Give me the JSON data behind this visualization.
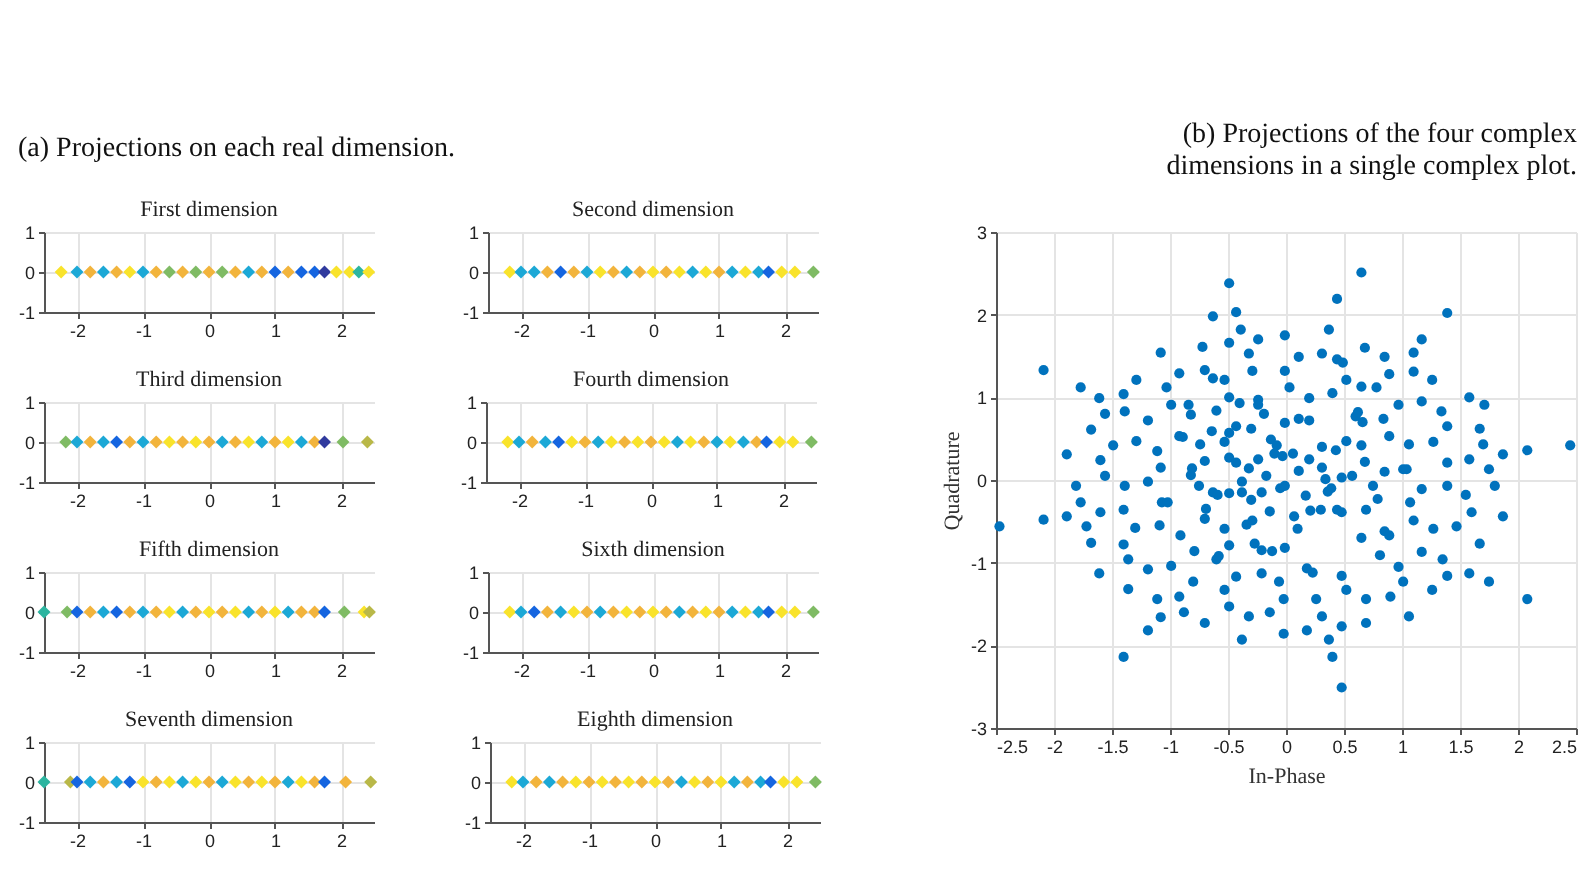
{
  "chart_data": [
    {
      "type": "scatter",
      "title": "(a) Projections on each real dimension.",
      "subtitle": "First dimension",
      "marker": "diamond",
      "grid": true,
      "xlim": [
        -2.5,
        2.5
      ],
      "xticks": [
        -2,
        -1,
        0,
        1,
        2
      ],
      "ylim": [
        -1,
        1
      ],
      "yticks": [
        -1,
        0,
        1
      ],
      "x": [
        -2.24,
        -2.0,
        -1.8,
        -1.6,
        -1.4,
        -1.2,
        -1.0,
        -0.8,
        -0.6,
        -0.4,
        -0.2,
        0,
        0.2,
        0.4,
        0.6,
        0.8,
        1.0,
        1.2,
        1.4,
        1.6,
        1.75,
        1.93,
        2.13,
        2.27,
        2.42
      ],
      "values": [
        0,
        0,
        0,
        0,
        0,
        0,
        0,
        0,
        0,
        0,
        0,
        0,
        0,
        0,
        0,
        0,
        0,
        0,
        0,
        0,
        0,
        0,
        0,
        0,
        0
      ],
      "colors": [
        "#f9e32b",
        "#1ca8d6",
        "#f2b43c",
        "#1ca8d6",
        "#f2b43c",
        "#f9e32b",
        "#1ca8d6",
        "#f2b43c",
        "#7fbb64",
        "#f2b43c",
        "#7fbb64",
        "#f2b43c",
        "#7fbb64",
        "#f2b43c",
        "#1ca8d6",
        "#f2b43c",
        "#1565e0",
        "#f2b43c",
        "#1565e0",
        "#1565e0",
        "#303a9e",
        "#f9e32b",
        "#f9e32b",
        "#2cb5a0",
        "#f9e32b"
      ]
    },
    {
      "type": "scatter",
      "title": "Second dimension",
      "marker": "diamond",
      "grid": true,
      "xlim": [
        -2.5,
        2.5
      ],
      "xticks": [
        -2,
        -1,
        0,
        1,
        2
      ],
      "ylim": [
        -1,
        1
      ],
      "yticks": [
        -1,
        0,
        1
      ],
      "x": [
        -2.17,
        -2.0,
        -1.8,
        -1.6,
        -1.4,
        -1.2,
        -1.0,
        -0.8,
        -0.6,
        -0.4,
        -0.2,
        0,
        0.2,
        0.4,
        0.6,
        0.8,
        1.0,
        1.2,
        1.4,
        1.6,
        1.75,
        1.95,
        2.15,
        2.43
      ],
      "values": [
        0,
        0,
        0,
        0,
        0,
        0,
        0,
        0,
        0,
        0,
        0,
        0,
        0,
        0,
        0,
        0,
        0,
        0,
        0,
        0,
        0,
        0,
        0,
        0
      ],
      "colors": [
        "#f9e32b",
        "#1ca8d6",
        "#1ca8d6",
        "#f2b43c",
        "#1565e0",
        "#f2b43c",
        "#1ca8d6",
        "#f9e32b",
        "#f2b43c",
        "#1ca8d6",
        "#f2b43c",
        "#f9e32b",
        "#f2b43c",
        "#f9e32b",
        "#1ca8d6",
        "#f9e32b",
        "#f2b43c",
        "#1ca8d6",
        "#f9e32b",
        "#1ca8d6",
        "#1565e0",
        "#f9e32b",
        "#f9e32b",
        "#7fbb64"
      ]
    },
    {
      "type": "scatter",
      "title": "Third dimension",
      "marker": "diamond",
      "grid": true,
      "xlim": [
        -2.5,
        2.5
      ],
      "xticks": [
        -2,
        -1,
        0,
        1,
        2
      ],
      "ylim": [
        -1,
        1
      ],
      "yticks": [
        -1,
        0,
        1
      ],
      "x": [
        -2.17,
        -2.0,
        -1.8,
        -1.6,
        -1.4,
        -1.2,
        -1.0,
        -0.8,
        -0.6,
        -0.4,
        -0.2,
        0,
        0.2,
        0.4,
        0.6,
        0.8,
        1.0,
        1.2,
        1.4,
        1.6,
        1.75,
        2.03,
        2.4
      ],
      "values": [
        0,
        0,
        0,
        0,
        0,
        0,
        0,
        0,
        0,
        0,
        0,
        0,
        0,
        0,
        0,
        0,
        0,
        0,
        0,
        0,
        0,
        0,
        0
      ],
      "colors": [
        "#7fbb64",
        "#1ca8d6",
        "#f2b43c",
        "#1ca8d6",
        "#1565e0",
        "#f2b43c",
        "#1ca8d6",
        "#f2b43c",
        "#f9e32b",
        "#f2b43c",
        "#f9e32b",
        "#f2b43c",
        "#1ca8d6",
        "#f2b43c",
        "#f9e32b",
        "#1ca8d6",
        "#f2b43c",
        "#f9e32b",
        "#1ca8d6",
        "#f2b43c",
        "#303a9e",
        "#7fbb64",
        "#b9b848"
      ]
    },
    {
      "type": "scatter",
      "title": "Fourth dimension",
      "marker": "diamond",
      "grid": true,
      "xlim": [
        -2.5,
        2.5
      ],
      "xticks": [
        -2,
        -1,
        0,
        1,
        2
      ],
      "ylim": [
        -1,
        1
      ],
      "yticks": [
        -1,
        0,
        1
      ],
      "x": [
        -2.17,
        -2.0,
        -1.8,
        -1.6,
        -1.4,
        -1.2,
        -1.0,
        -0.8,
        -0.6,
        -0.4,
        -0.2,
        0,
        0.2,
        0.4,
        0.6,
        0.8,
        1.0,
        1.2,
        1.4,
        1.6,
        1.75,
        1.95,
        2.15,
        2.43
      ],
      "values": [
        0,
        0,
        0,
        0,
        0,
        0,
        0,
        0,
        0,
        0,
        0,
        0,
        0,
        0,
        0,
        0,
        0,
        0,
        0,
        0,
        0,
        0,
        0,
        0
      ],
      "colors": [
        "#f9e32b",
        "#1ca8d6",
        "#f2b43c",
        "#1ca8d6",
        "#1565e0",
        "#f9e32b",
        "#f2b43c",
        "#1ca8d6",
        "#f9e32b",
        "#f2b43c",
        "#f9e32b",
        "#f2b43c",
        "#f9e32b",
        "#1ca8d6",
        "#f9e32b",
        "#f2b43c",
        "#1ca8d6",
        "#f9e32b",
        "#1ca8d6",
        "#f2b43c",
        "#1565e0",
        "#f9e32b",
        "#f9e32b",
        "#7fbb64"
      ]
    },
    {
      "type": "scatter",
      "title": "Fifth dimension",
      "marker": "diamond",
      "grid": true,
      "xlim": [
        -2.5,
        2.5
      ],
      "xticks": [
        -2,
        -1,
        0,
        1,
        2
      ],
      "ylim": [
        -1,
        1
      ],
      "yticks": [
        -1,
        0,
        1
      ],
      "x": [
        -2.5,
        -2.15,
        -2.0,
        -1.8,
        -1.6,
        -1.4,
        -1.2,
        -1.0,
        -0.8,
        -0.6,
        -0.4,
        -0.2,
        0,
        0.2,
        0.4,
        0.6,
        0.8,
        1.0,
        1.2,
        1.4,
        1.6,
        1.75,
        2.05,
        2.35,
        2.43
      ],
      "values": [
        0,
        0,
        0,
        0,
        0,
        0,
        0,
        0,
        0,
        0,
        0,
        0,
        0,
        0,
        0,
        0,
        0,
        0,
        0,
        0,
        0,
        0,
        0,
        0,
        0
      ],
      "colors": [
        "#2cb5a0",
        "#7fbb64",
        "#1565e0",
        "#f2b43c",
        "#1ca8d6",
        "#1565e0",
        "#f2b43c",
        "#1ca8d6",
        "#f2b43c",
        "#f9e32b",
        "#1ca8d6",
        "#f2b43c",
        "#f9e32b",
        "#f2b43c",
        "#f9e32b",
        "#1ca8d6",
        "#f2b43c",
        "#f9e32b",
        "#1ca8d6",
        "#f2b43c",
        "#f2b43c",
        "#1565e0",
        "#7fbb64",
        "#f9e32b",
        "#b9b848"
      ]
    },
    {
      "type": "scatter",
      "title": "Sixth dimension",
      "marker": "diamond",
      "grid": true,
      "xlim": [
        -2.5,
        2.5
      ],
      "xticks": [
        -2,
        -1,
        0,
        1,
        2
      ],
      "ylim": [
        -1,
        1
      ],
      "yticks": [
        -1,
        0,
        1
      ],
      "x": [
        -2.17,
        -2.0,
        -1.8,
        -1.6,
        -1.4,
        -1.2,
        -1.0,
        -0.8,
        -0.6,
        -0.4,
        -0.2,
        0,
        0.2,
        0.4,
        0.6,
        0.8,
        1.0,
        1.2,
        1.4,
        1.6,
        1.75,
        1.95,
        2.15,
        2.43
      ],
      "values": [
        0,
        0,
        0,
        0,
        0,
        0,
        0,
        0,
        0,
        0,
        0,
        0,
        0,
        0,
        0,
        0,
        0,
        0,
        0,
        0,
        0,
        0,
        0,
        0
      ],
      "colors": [
        "#f9e32b",
        "#1ca8d6",
        "#1565e0",
        "#f2b43c",
        "#1ca8d6",
        "#f9e32b",
        "#f2b43c",
        "#1ca8d6",
        "#f2b43c",
        "#f9e32b",
        "#f2b43c",
        "#f9e32b",
        "#f2b43c",
        "#1ca8d6",
        "#f2b43c",
        "#f9e32b",
        "#f2b43c",
        "#1ca8d6",
        "#f9e32b",
        "#1ca8d6",
        "#1565e0",
        "#f9e32b",
        "#f9e32b",
        "#7fbb64"
      ]
    },
    {
      "type": "scatter",
      "title": "Seventh dimension",
      "marker": "diamond",
      "grid": true,
      "xlim": [
        -2.5,
        2.5
      ],
      "xticks": [
        -2,
        -1,
        0,
        1,
        2
      ],
      "ylim": [
        -1,
        1
      ],
      "yticks": [
        -1,
        0,
        1
      ],
      "x": [
        -2.5,
        -2.1,
        -2.0,
        -1.8,
        -1.6,
        -1.4,
        -1.2,
        -1.0,
        -0.8,
        -0.6,
        -0.4,
        -0.2,
        0,
        0.2,
        0.4,
        0.6,
        0.8,
        1.0,
        1.2,
        1.4,
        1.6,
        1.75,
        2.07,
        2.45
      ],
      "values": [
        0,
        0,
        0,
        0,
        0,
        0,
        0,
        0,
        0,
        0,
        0,
        0,
        0,
        0,
        0,
        0,
        0,
        0,
        0,
        0,
        0,
        0,
        0,
        0
      ],
      "colors": [
        "#2cb5a0",
        "#b9b848",
        "#1565e0",
        "#1ca8d6",
        "#f2b43c",
        "#1ca8d6",
        "#1565e0",
        "#f9e32b",
        "#f2b43c",
        "#f9e32b",
        "#1ca8d6",
        "#f9e32b",
        "#f2b43c",
        "#1ca8d6",
        "#f9e32b",
        "#f2b43c",
        "#f9e32b",
        "#f2b43c",
        "#1ca8d6",
        "#f9e32b",
        "#f2b43c",
        "#1565e0",
        "#f2b43c",
        "#b9b848"
      ]
    },
    {
      "type": "scatter",
      "title": "Eighth dimension",
      "marker": "diamond",
      "grid": true,
      "xlim": [
        -2.5,
        2.5
      ],
      "xticks": [
        -2,
        -1,
        0,
        1,
        2
      ],
      "ylim": [
        -1,
        1
      ],
      "yticks": [
        -1,
        0,
        1
      ],
      "x": [
        -2.17,
        -2.0,
        -1.8,
        -1.6,
        -1.4,
        -1.2,
        -1.0,
        -0.8,
        -0.6,
        -0.4,
        -0.2,
        0,
        0.2,
        0.4,
        0.6,
        0.8,
        1.0,
        1.2,
        1.4,
        1.6,
        1.75,
        1.95,
        2.15,
        2.43
      ],
      "values": [
        0,
        0,
        0,
        0,
        0,
        0,
        0,
        0,
        0,
        0,
        0,
        0,
        0,
        0,
        0,
        0,
        0,
        0,
        0,
        0,
        0,
        0,
        0,
        0
      ],
      "colors": [
        "#f9e32b",
        "#1ca8d6",
        "#f2b43c",
        "#1ca8d6",
        "#f2b43c",
        "#f9e32b",
        "#f2b43c",
        "#f9e32b",
        "#f2b43c",
        "#f9e32b",
        "#f2b43c",
        "#f9e32b",
        "#f2b43c",
        "#1ca8d6",
        "#f9e32b",
        "#f2b43c",
        "#f9e32b",
        "#1ca8d6",
        "#f2b43c",
        "#1ca8d6",
        "#1565e0",
        "#f9e32b",
        "#f9e32b",
        "#7fbb64"
      ]
    },
    {
      "type": "scatter",
      "title": "(b) Projections of the four complex dimensions in a single complex plot.",
      "xlabel": "In-Phase",
      "ylabel": "Quadrature",
      "marker": "circle",
      "grid": true,
      "color": "#0072bd",
      "xlim": [
        -2.5,
        2.5
      ],
      "xticks": [
        -2.5,
        -2,
        -1.5,
        -1,
        -0.5,
        0,
        0.5,
        1,
        1.5,
        2,
        2.5
      ],
      "ylim": [
        -3,
        3
      ],
      "yticks": [
        -3,
        -2,
        -1,
        0,
        1,
        2,
        3
      ],
      "x": [
        -2.47,
        -2.09,
        -2.09,
        -1.89,
        -1.89,
        -1.81,
        -1.77,
        -1.77,
        -1.72,
        -1.68,
        -1.68,
        -1.61,
        -1.6,
        -1.6,
        -1.56,
        -1.56,
        -1.49,
        -1.4,
        -1.39,
        -1.39,
        -1.4,
        -1.4,
        -1.36,
        -1.3,
        -1.29,
        -1.29,
        -1.19,
        -1.19,
        -1.19,
        -1.11,
        -1.09,
        -1.08,
        -1.08,
        -1.07,
        -1.03,
        -1.02,
        -0.99,
        -0.99,
        -0.92,
        -0.92,
        -0.91,
        -0.89,
        -0.84,
        -0.82,
        -0.82,
        -0.81,
        -0.79,
        -0.75,
        -0.74,
        -0.72,
        -0.7,
        -0.7,
        -0.7,
        -0.69,
        -0.63,
        -0.63,
        -0.64,
        -0.63,
        -0.6,
        -0.6,
        -0.58,
        -0.59,
        -0.53,
        -0.53,
        -0.53,
        -0.49,
        -0.49,
        -0.49,
        -0.49,
        -0.49,
        -0.49,
        -0.49,
        -0.43,
        -0.43,
        -0.43,
        -0.43,
        -0.4,
        -0.39,
        -0.38,
        -0.38,
        -0.32,
        -0.32,
        -0.34,
        -0.3,
        -0.3,
        -0.29,
        -0.29,
        -0.27,
        -0.24,
        -0.24,
        -0.24,
        -0.24,
        -0.21,
        -0.21,
        -0.21,
        -0.19,
        -0.17,
        -0.14,
        -0.13,
        -0.12,
        -0.1,
        -0.08,
        -0.05,
        -0.03,
        -0.01,
        -0.01,
        -0.01,
        -0.01,
        -0.01,
        0.03,
        0.06,
        0.07,
        0.1,
        0.11,
        0.11,
        0.11,
        0.17,
        0.2,
        0.2,
        0.2,
        0.21,
        0.23,
        0.31,
        0.3,
        0.31,
        0.31,
        0.34,
        0.36,
        0.37,
        0.39,
        0.4,
        0.43,
        0.44,
        0.44,
        0.44,
        0.49,
        0.48,
        0.48,
        0.48,
        0.52,
        0.52,
        0.57,
        0.6,
        0.62,
        0.65,
        0.65,
        0.65,
        0.65,
        0.66,
        0.68,
        0.68,
        0.69,
        0.75,
        0.78,
        0.79,
        0.81,
        0.84,
        0.85,
        0.85,
        0.85,
        0.89,
        0.89,
        0.89,
        0.97,
        0.97,
        1.01,
        1.04,
        1.06,
        1.07,
        1.1,
        1.1,
        1.1,
        1.17,
        1.17,
        1.17,
        1.17,
        1.26,
        1.27,
        1.27,
        1.34,
        1.35,
        1.39,
        1.39,
        1.39,
        1.39,
        1.47,
        1.55,
        1.58,
        1.58,
        1.6,
        1.67,
        1.67,
        1.7,
        1.71,
        1.75,
        1.8,
        1.87,
        1.87,
        2.08,
        2.45,
        -1.61,
        -1.36,
        -1.19,
        -1.11,
        -1.08,
        -1.4,
        -0.92,
        -0.88,
        -0.8,
        -0.7,
        -0.53,
        -0.49,
        -0.38,
        -0.32,
        -0.14,
        -0.06,
        -0.02,
        -0.02,
        0.18,
        0.18,
        0.26,
        0.31,
        0.37,
        0.4,
        0.48,
        0.48,
        0.52,
        0.69,
        0.69,
        0.9,
        1.01,
        1.06,
        1.26,
        1.39,
        1.58,
        1.75,
        2.08
      ],
      "values": [
        -0.56,
        1.33,
        -0.48,
        0.31,
        -0.44,
        -0.07,
        1.12,
        -0.27,
        -0.56,
        0.61,
        -0.76,
        0.99,
        0.24,
        -0.39,
        0.8,
        0.05,
        0.42,
        1.04,
        0.83,
        -0.07,
        -0.36,
        -0.78,
        -0.96,
        -0.58,
        1.21,
        0.47,
        0.72,
        -0.02,
        -1.08,
        0.35,
        -0.55,
        1.54,
        0.15,
        -0.27,
        1.12,
        -0.27,
        0.91,
        -1.04,
        0.53,
        1.29,
        -0.67,
        0.52,
        0.91,
        0.06,
        0.79,
        0.14,
        -0.86,
        -0.07,
        0.43,
        1.61,
        1.33,
        0.23,
        -0.47,
        -0.35,
        1.98,
        1.23,
        0.59,
        -0.15,
        0.84,
        -0.96,
        -0.92,
        -0.18,
        1.21,
        0.46,
        -0.59,
        2.38,
        1.66,
        1.0,
        0.57,
        0.27,
        -0.16,
        -0.79,
        2.03,
        0.65,
        0.21,
        -1.17,
        0.93,
        1.82,
        -0.02,
        -0.15,
        1.53,
        0.14,
        -0.54,
        -0.24,
        0.62,
        1.32,
        -0.49,
        -0.77,
        1.7,
        0.97,
        0.91,
        0.25,
        -0.15,
        -0.85,
        -1.13,
        0.8,
        0.05,
        -0.38,
        0.49,
        -0.86,
        0.32,
        0.42,
        -0.1,
        0.29,
        1.75,
        1.32,
        0.69,
        -0.07,
        -0.82,
        1.12,
        0.32,
        -0.44,
        -0.59,
        1.49,
        0.74,
        0.11,
        -0.19,
        0.72,
        0.99,
        0.25,
        -0.37,
        -1.12,
        1.53,
        -0.36,
        0.15,
        0.4,
        0.01,
        -0.14,
        1.82,
        -0.1,
        1.05,
        0.36,
        2.19,
        1.46,
        -0.36,
        1.42,
        0.03,
        -1.16,
        -0.39,
        1.21,
        0.47,
        0.05,
        0.77,
        0.82,
        2.51,
        1.13,
        0.42,
        -0.7,
        0.7,
        1.6,
        0.22,
        -0.36,
        -0.07,
        1.12,
        -0.23,
        -0.91,
        0.74,
        1.49,
        0.1,
        -0.62,
        1.28,
        0.53,
        -0.67,
        0.91,
        -1.05,
        0.13,
        0.13,
        0.43,
        -0.27,
        1.54,
        1.31,
        -0.49,
        1.7,
        0.95,
        -0.11,
        -0.87,
        1.21,
        0.46,
        -0.59,
        0.83,
        -0.96,
        2.02,
        0.65,
        0.21,
        -0.07,
        -0.56,
        -0.18,
        1.0,
        0.25,
        -0.39,
        -0.77,
        0.62,
        0.43,
        0.91,
        0.13,
        -0.07,
        0.31,
        -0.44,
        0.36,
        0.42,
        -1.13,
        -1.32,
        -1.82,
        -1.44,
        -1.66,
        -2.14,
        -1.41,
        -1.6,
        -1.23,
        -1.73,
        -1.33,
        -1.53,
        -1.93,
        -1.65,
        -1.6,
        -1.23,
        -1.44,
        -1.86,
        -1.07,
        -1.82,
        -1.44,
        -1.65,
        -1.93,
        -2.14,
        -1.77,
        -2.51,
        -1.33,
        -1.44,
        -1.73,
        -1.41,
        -1.23,
        -1.65,
        -1.33,
        -1.16,
        -1.13,
        -1.23,
        -1.44
      ]
    }
  ]
}
